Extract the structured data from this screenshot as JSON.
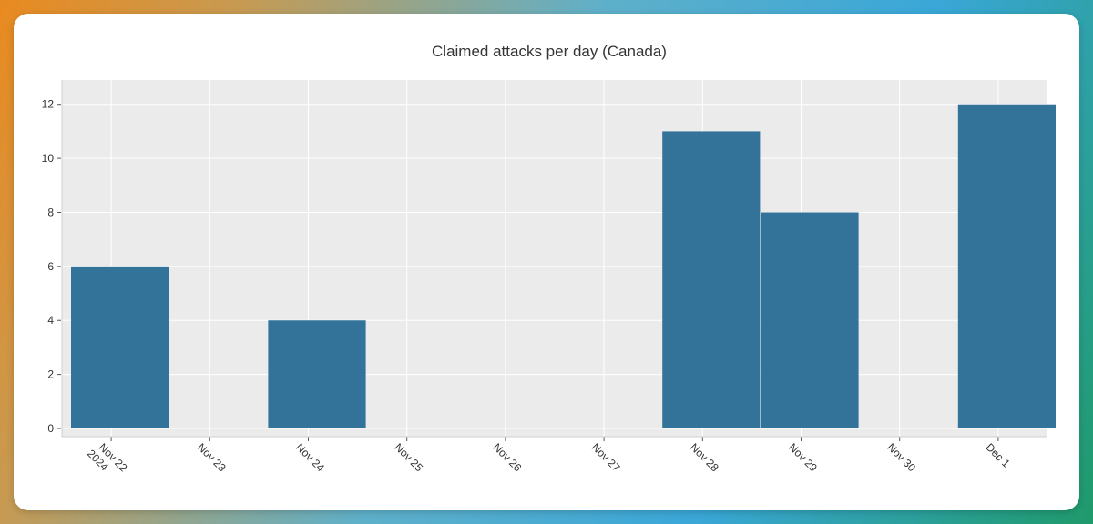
{
  "chart_data": {
    "type": "bar",
    "title": "Claimed attacks per day (Canada)",
    "xlabel": "",
    "ylabel": "",
    "categories": [
      [
        "Nov 22",
        "2024"
      ],
      [
        "Nov 23"
      ],
      [
        "Nov 24"
      ],
      [
        "Nov 25"
      ],
      [
        "Nov 26"
      ],
      [
        "Nov 27"
      ],
      [
        "Nov 28"
      ],
      [
        "Nov 29"
      ],
      [
        "Nov 30"
      ],
      [
        "Dec 1"
      ]
    ],
    "values": [
      6,
      0,
      4,
      0,
      0,
      0,
      11,
      8,
      0,
      12
    ],
    "ylim": [
      0,
      12.9
    ],
    "yticks": [
      0,
      2,
      4,
      6,
      8,
      10,
      12
    ],
    "grid": true,
    "colors": {
      "bar": "#347399",
      "plot_bg": "#ebebeb",
      "grid": "#ffffff"
    }
  }
}
